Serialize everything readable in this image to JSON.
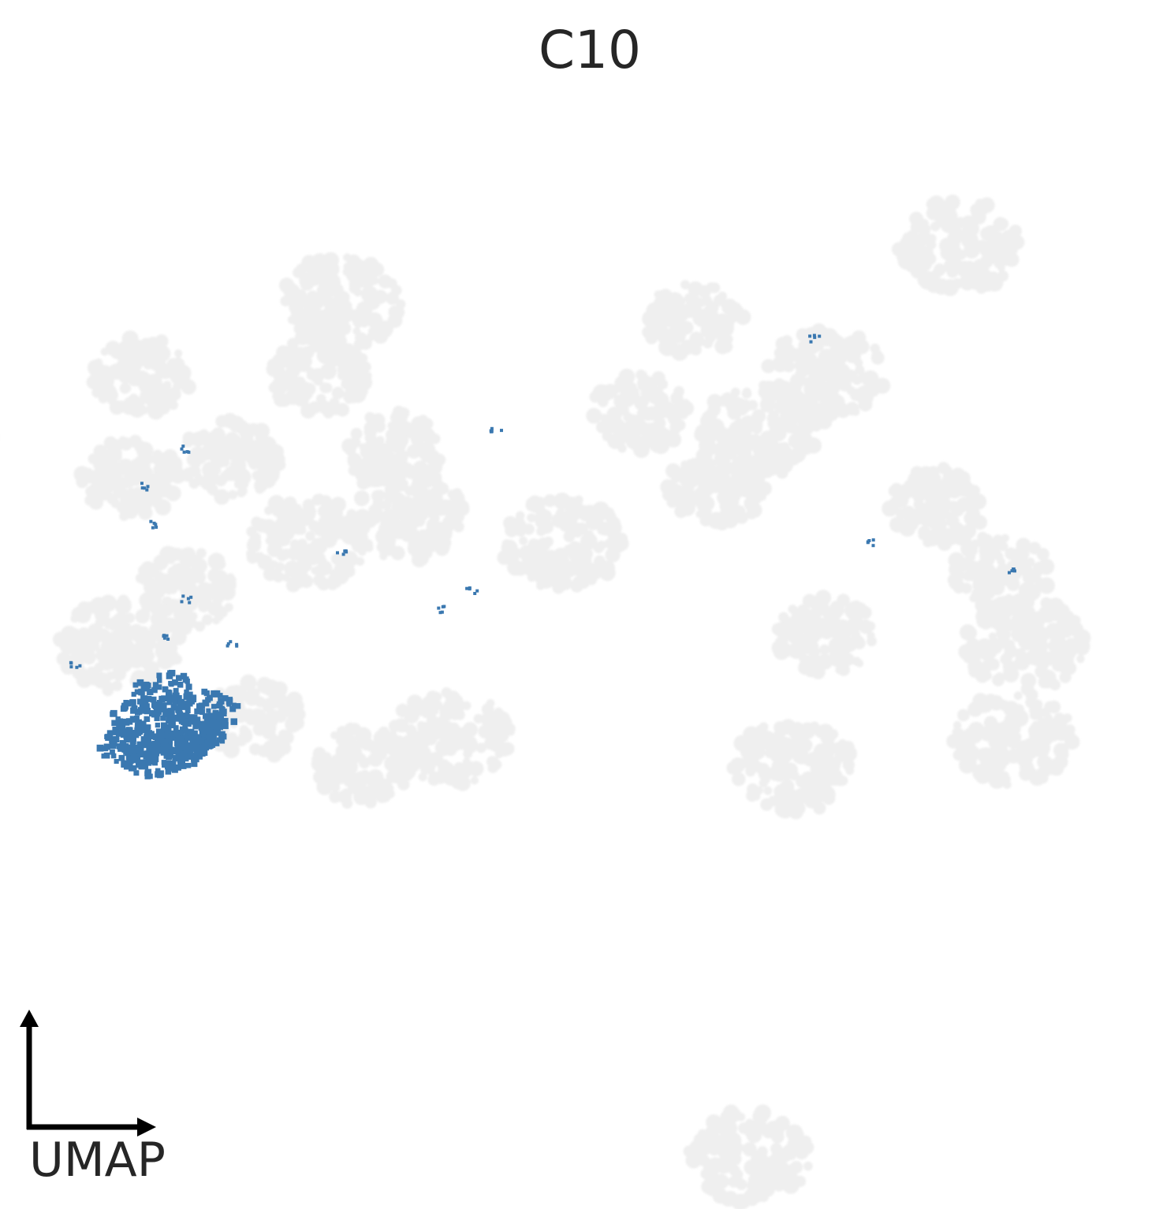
{
  "chart_data": {
    "type": "scatter",
    "title": "C10",
    "axis_label": "UMAP",
    "grid": false,
    "colors": {
      "highlight": "#3a78b0",
      "background_cells": "#efefef",
      "axis": "#000000",
      "text": "#262626"
    },
    "series": [
      {
        "role": "background",
        "clusters": [
          [
            [
              -1.2,
              3.2
            ],
            [
              -0.6,
              0.9
            ],
            [
              0.8,
              0.6
            ],
            [
              3.2,
              2.4
            ],
            [
              2.6,
              1.8
            ],
            [
              5.0,
              -0.5
            ],
            [
              4.9,
              -1.5
            ],
            [
              2.9,
              -1.8
            ],
            [
              -0.2,
              -1.5
            ],
            [
              -4.9,
              1.6
            ],
            [
              -5.2,
              -1.2
            ],
            [
              -3.2,
              -0.5
            ],
            [
              -1.5,
              0.6
            ],
            [
              2.5,
              -6.0
            ],
            [
              4.4,
              3.8
            ]
          ],
          [
            [
              -3.1,
              1.3
            ],
            [
              -2.2,
              1.5
            ],
            [
              -2.6,
              0.1
            ],
            [
              -3.0,
              2.4
            ],
            [
              -2.0,
              -1.3
            ],
            [
              -1.0,
              -1.8
            ],
            [
              -0.7,
              1.6
            ],
            [
              -1.4,
              2.4
            ],
            [
              1.5,
              2.0
            ],
            [
              3.2,
              -0.4
            ],
            [
              4.2,
              1.0
            ],
            [
              4.8,
              0.3
            ],
            [
              2.0,
              3.0
            ],
            [
              2.2,
              1.2
            ]
          ]
        ]
      },
      {
        "role": "highlight",
        "name": "C10",
        "points": [
          [
            -3.1,
            -1.6
          ],
          [
            -2.9,
            -1.7
          ],
          [
            -2.6,
            -1.5
          ],
          [
            -2.4,
            -1.2
          ],
          [
            -3.0,
            -1.3
          ],
          [
            -2.7,
            -1.6
          ],
          [
            -2.5,
            -1.4
          ],
          [
            -2.8,
            -1.0
          ],
          [
            -2.8,
            -0.4
          ],
          [
            -2.6,
            0.0
          ],
          [
            -2.9,
            0.8
          ],
          [
            -3.0,
            1.2
          ],
          [
            -2.6,
            1.6
          ],
          [
            -1.2,
            0.5
          ],
          [
            0.2,
            1.8
          ],
          [
            3.1,
            2.8
          ],
          [
            -0.3,
            -0.1
          ],
          [
            0.0,
            0.1
          ],
          [
            3.6,
            0.6
          ],
          [
            4.9,
            0.3
          ],
          [
            -3.6,
            -0.7
          ],
          [
            -2.2,
            -0.5
          ]
        ]
      }
    ]
  }
}
